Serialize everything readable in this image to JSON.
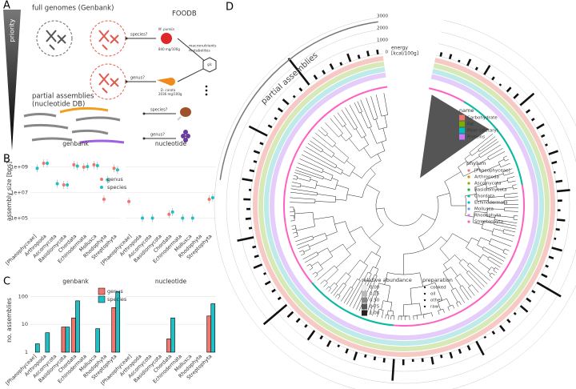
{
  "panel_labels": [
    "A",
    "B",
    "C",
    "D"
  ],
  "diagram": {
    "priority": "priority",
    "full_genomes": "full genomes (Genbank)",
    "foodb": "FOODB",
    "species_q": "species?",
    "genus_q": "genus?",
    "apple_name": "M. pumila",
    "apple_value": "840 mg/100g",
    "carrot_name": "D. carota",
    "carrot_value": "2036 mg/100g",
    "nutrients": [
      "macronutrients",
      "metabolites"
    ],
    "glc": "glc",
    "partial": [
      "partial assemblies",
      "(nucleotide DB)"
    ],
    "species_q2": "species?",
    "genus_q2": "genus?"
  },
  "chart_data": [
    {
      "type": "dot",
      "facets": [
        "genbank",
        "nucleotide"
      ],
      "categories": [
        "[Phaeophyceae]",
        "Arthropoda",
        "Ascomycota",
        "Basidiomycota",
        "Chordata",
        "Echinodermata",
        "Mollusca",
        "Rhodophyta",
        "Streptophyta"
      ],
      "ylabel": "assembly size [bps]",
      "log": true,
      "ylim": [
        8000,
        20000000000
      ],
      "yticks": [
        {
          "value": 100000,
          "label": "1e+05"
        },
        {
          "value": 10000000,
          "label": "1e+07"
        },
        {
          "value": 1000000000,
          "label": "1e+09"
        }
      ],
      "series": [
        {
          "name": "genus",
          "color": "#f0766e",
          "values": [
            [
              null,
              2000000000,
              null,
              40000000,
              1500000000,
              1000000000,
              1500000000,
              3000000,
              800000000
            ],
            [
              2000000,
              null,
              null,
              null,
              200000,
              null,
              null,
              null,
              3000000
            ]
          ]
        },
        {
          "name": "species",
          "color": "#1fbfc4",
          "values": [
            [
              800000000,
              2000000000,
              50000000,
              40000000,
              1200000000,
              1100000000,
              1300000000,
              100000000,
              600000000
            ],
            [
              null,
              100000,
              100000,
              null,
              300000,
              100000,
              100000,
              null,
              4000000
            ]
          ]
        }
      ]
    },
    {
      "type": "bar",
      "facets": [
        "genbank",
        "nucleotide"
      ],
      "categories": [
        "[Phaeophyceae]",
        "Arthropoda",
        "Ascomycota",
        "Basidiomycota",
        "Chordata",
        "Echinodermata",
        "Mollusca",
        "Rhodophyta",
        "Streptophyta"
      ],
      "ylabel": "no. assemblies",
      "log": true,
      "ylim": [
        1,
        200
      ],
      "yticks": [
        1,
        10,
        100
      ],
      "series": [
        {
          "name": "genus",
          "color": "#f0766e",
          "values": [
            [
              1,
              1,
              1,
              8,
              17,
              1,
              1,
              1,
              40
            ],
            [
              1,
              1,
              1,
              null,
              3,
              null,
              null,
              null,
              20
            ]
          ]
        },
        {
          "name": "species",
          "color": "#1fbfc4",
          "values": [
            [
              2,
              5,
              1,
              8,
              70,
              1,
              7,
              1,
              150
            ],
            [
              1,
              1,
              1,
              null,
              17,
              null,
              null,
              null,
              55
            ]
          ]
        }
      ]
    },
    {
      "type": "circular",
      "arc_label": "partial assemblies",
      "energy_label": [
        "energy",
        "[kcal/100g]"
      ],
      "ylim": [
        0,
        3000
      ],
      "yticks": [
        0,
        1000,
        2000,
        3000
      ],
      "values": [
        350,
        420,
        180,
        600,
        250,
        900,
        300,
        150,
        480,
        520,
        1500,
        380,
        260,
        700,
        310,
        200,
        820,
        450,
        130,
        560,
        1100,
        390,
        240,
        680,
        330,
        170,
        900,
        410,
        260,
        520,
        2300,
        300,
        450,
        780,
        200,
        340,
        600,
        280,
        150,
        1300,
        420,
        380,
        520,
        260,
        640,
        300,
        220,
        480,
        1800,
        360,
        300,
        250,
        720,
        400,
        180,
        560,
        310,
        950,
        260,
        400,
        620,
        2500,
        280,
        340,
        500,
        210,
        760,
        380,
        300,
        1400,
        260,
        450,
        330,
        590,
        200,
        880,
        410,
        270,
        520,
        300,
        1700,
        350,
        240,
        460,
        630,
        190,
        300,
        2800,
        400,
        350,
        520,
        260,
        700,
        320,
        450,
        380
      ],
      "color": "#111111",
      "legend_name": {
        "title": "name",
        "items": [
          {
            "name": "Carbohydrate",
            "color": "#f0766e"
          },
          {
            "name": "Fat",
            "color": "#7cae00"
          },
          {
            "name": "Fiber (dietary)",
            "color": "#00bfc4"
          },
          {
            "name": "Proteins",
            "color": "#c77cff"
          }
        ]
      },
      "legend_phylum": {
        "title": "phylum",
        "items": [
          {
            "name": "[Phaeophyceae]",
            "color": "#f8766d"
          },
          {
            "name": "Arthropoda",
            "color": "#d39200"
          },
          {
            "name": "Ascomycota",
            "color": "#93aa00"
          },
          {
            "name": "Basidiomycota",
            "color": "#00ba38"
          },
          {
            "name": "Chordata",
            "color": "#00c19f"
          },
          {
            "name": "Echinodermata",
            "color": "#00b9e3"
          },
          {
            "name": "Mollusca",
            "color": "#619cff"
          },
          {
            "name": "Rhodophyta",
            "color": "#db72fb"
          },
          {
            "name": "Streptophyta",
            "color": "#ff61c3"
          }
        ]
      },
      "legend_abundance": {
        "title": "relative abundance",
        "ticks": [
          {
            "value": 0,
            "label": "0.00"
          },
          {
            "value": 0.25,
            "label": "0.25"
          },
          {
            "value": 0.5,
            "label": "0.50"
          },
          {
            "value": 0.75,
            "label": "0.75"
          },
          {
            "value": 1,
            "label": "1.00"
          }
        ]
      },
      "legend_preparation": {
        "title": "preparation",
        "items": [
          "cooked",
          "oil",
          "other",
          "raw"
        ]
      }
    }
  ]
}
